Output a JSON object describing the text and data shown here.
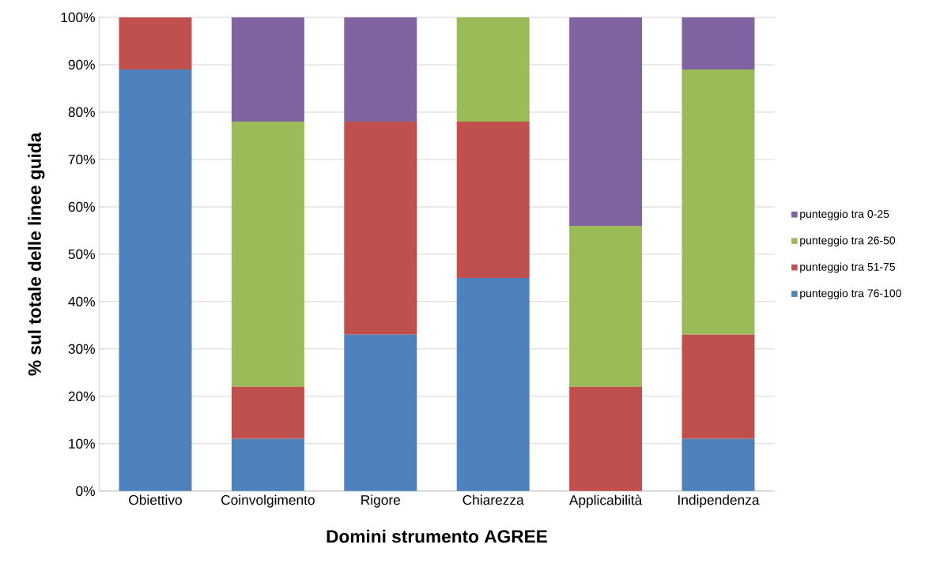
{
  "chart_data": {
    "type": "bar",
    "stacked": true,
    "xlabel": "Domini strumento AGREE",
    "ylabel": "% sul totale delle linee guida",
    "categories": [
      "Obiettivo",
      "Coinvolgimento",
      "Rigore",
      "Chiarezza",
      "Applicabilità",
      "Indipendenza"
    ],
    "series": [
      {
        "name": "punteggio tra 76-100",
        "color": "#4f81bd",
        "values": [
          89,
          11,
          33,
          45,
          0,
          11
        ]
      },
      {
        "name": "punteggio tra 51-75",
        "color": "#c0504d",
        "values": [
          11,
          11,
          45,
          33,
          22,
          22
        ]
      },
      {
        "name": "punteggio tra 26-50",
        "color": "#9bbb59",
        "values": [
          0,
          56,
          0,
          22,
          34,
          56
        ]
      },
      {
        "name": "punteggio tra 0-25",
        "color": "#8064a2",
        "values": [
          0,
          22,
          22,
          0,
          44,
          11
        ]
      }
    ],
    "ylim": [
      0,
      100
    ],
    "yticks": [
      {
        "value": 0,
        "label": "0%"
      },
      {
        "value": 10,
        "label": "10%"
      },
      {
        "value": 20,
        "label": "20%"
      },
      {
        "value": 30,
        "label": "30%"
      },
      {
        "value": 40,
        "label": "40%"
      },
      {
        "value": 50,
        "label": "50%"
      },
      {
        "value": 60,
        "label": "60%"
      },
      {
        "value": 70,
        "label": "70%"
      },
      {
        "value": 80,
        "label": "80%"
      },
      {
        "value": 90,
        "label": "90%"
      },
      {
        "value": 100,
        "label": "100%"
      }
    ],
    "grid": "y",
    "legend": "right"
  }
}
